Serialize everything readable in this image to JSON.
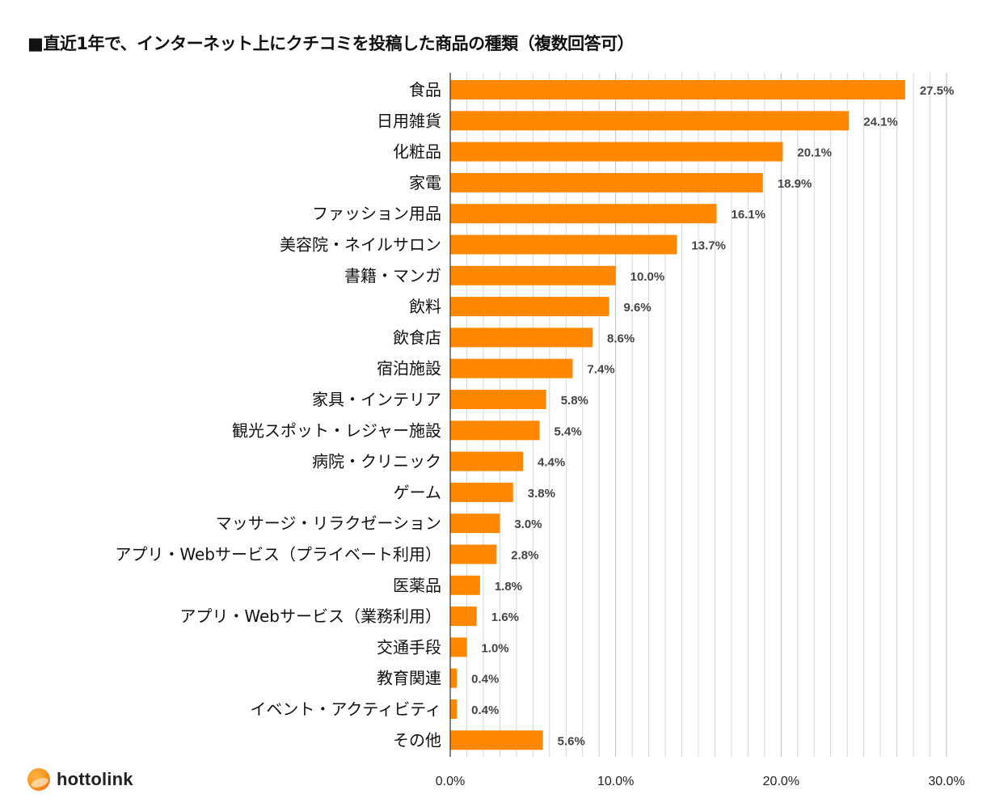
{
  "title": "■直近1年で、インターネット上にクチコミを投稿した商品の種類（複数回答可）",
  "logo_text": "hottolink",
  "chart_data": {
    "type": "bar",
    "orientation": "horizontal",
    "categories": [
      "食品",
      "日用雑貨",
      "化粧品",
      "家電",
      "ファッション用品",
      "美容院・ネイルサロン",
      "書籍・マンガ",
      "飲料",
      "飲食店",
      "宿泊施設",
      "家具・インテリア",
      "観光スポット・レジャー施設",
      "病院・クリニック",
      "ゲーム",
      "マッサージ・リラクゼーション",
      "アプリ・Webサービス（プライベート利用）",
      "医薬品",
      "アプリ・Webサービス（業務利用）",
      "交通手段",
      "教育関連",
      "イベント・アクティビティ",
      "その他"
    ],
    "values": [
      27.5,
      24.1,
      20.1,
      18.9,
      16.1,
      13.7,
      10.0,
      9.6,
      8.6,
      7.4,
      5.8,
      5.4,
      4.4,
      3.8,
      3.0,
      2.8,
      1.8,
      1.6,
      1.0,
      0.4,
      0.4,
      5.6
    ],
    "value_labels": [
      "27.5%",
      "24.1%",
      "20.1%",
      "18.9%",
      "16.1%",
      "13.7%",
      "10.0%",
      "9.6%",
      "8.6%",
      "7.4%",
      "5.8%",
      "5.4%",
      "4.4%",
      "3.8%",
      "3.0%",
      "2.8%",
      "1.8%",
      "1.6%",
      "1.0%",
      "0.4%",
      "0.4%",
      "5.6%"
    ],
    "xlim": [
      0,
      30
    ],
    "x_ticks": [
      0,
      10,
      20,
      30
    ],
    "x_tick_labels": [
      "0.0%",
      "10.0%",
      "20.0%",
      "30.0%"
    ],
    "minor_grid_step": 1,
    "grid": true,
    "bar_color": "#ff8800",
    "grid_color": "#d6d6d6"
  }
}
